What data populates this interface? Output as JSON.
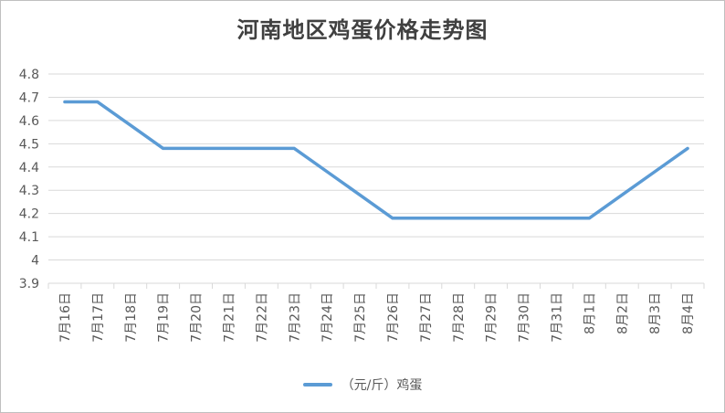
{
  "chart_data": {
    "type": "line",
    "title": "河南地区鸡蛋价格走势图",
    "categories": [
      "7月16日",
      "7月17日",
      "7月18日",
      "7月19日",
      "7月20日",
      "7月21日",
      "7月22日",
      "7月23日",
      "7月24日",
      "7月25日",
      "7月26日",
      "7月27日",
      "7月28日",
      "7月29日",
      "7月30日",
      "7月31日",
      "8月1日",
      "8月2日",
      "8月3日",
      "8月4日"
    ],
    "series": [
      {
        "name": "（元/斤）鸡蛋",
        "values": [
          4.68,
          4.68,
          4.58,
          4.48,
          4.48,
          4.48,
          4.48,
          4.48,
          4.38,
          4.28,
          4.18,
          4.18,
          4.18,
          4.18,
          4.18,
          4.18,
          4.18,
          4.28,
          4.38,
          4.48
        ],
        "color": "#5b9bd5"
      }
    ],
    "ylim": [
      3.9,
      4.8
    ],
    "yticks": [
      "3.9",
      "4",
      "4.1",
      "4.2",
      "4.3",
      "4.4",
      "4.5",
      "4.6",
      "4.7",
      "4.8"
    ],
    "ytick_values": [
      3.9,
      4.0,
      4.1,
      4.2,
      4.3,
      4.4,
      4.5,
      4.6,
      4.7,
      4.8
    ],
    "grid": true,
    "legend_position": "bottom"
  }
}
